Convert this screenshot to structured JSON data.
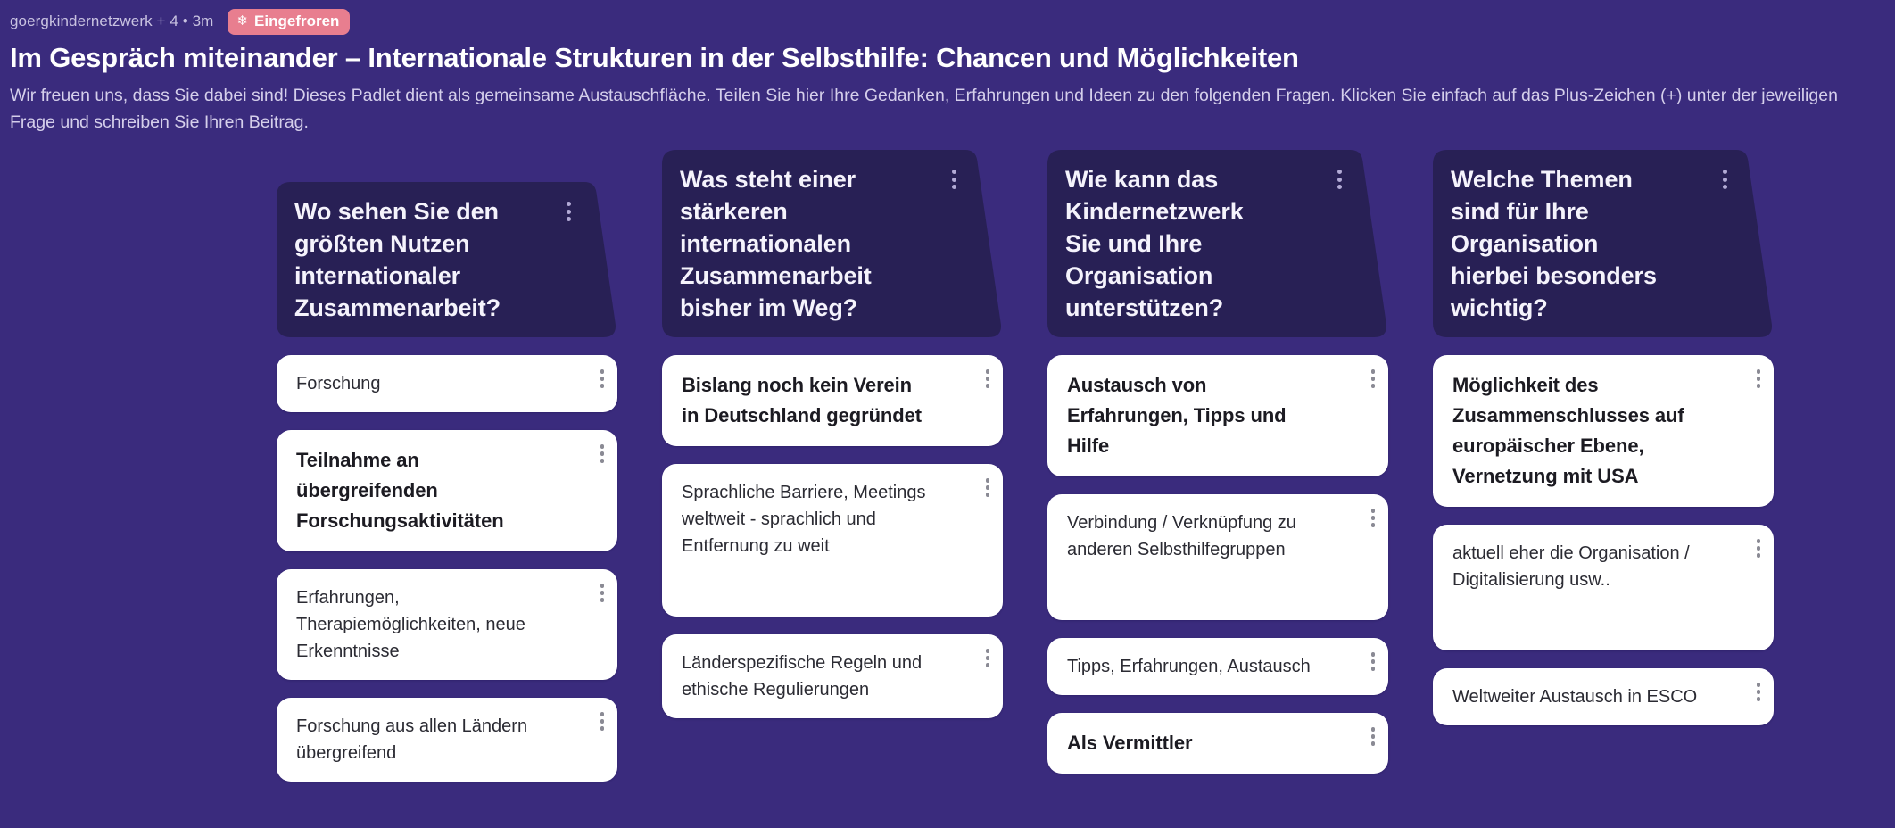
{
  "header": {
    "meta": "goergkindernetzwerk + 4 • 3m",
    "badge_icon": "❄",
    "badge_label": "Eingefroren",
    "badge_color": "#e87e8f",
    "title": "Im Gespräch miteinander – Internationale Strukturen in der Selbsthilfe: Chancen und Möglichkeiten",
    "description": "Wir freuen uns, dass Sie dabei sind! Dieses Padlet dient als gemeinsame Austauschfläche. Teilen Sie hier Ihre Gedanken, Erfahrungen und Ideen zu den folgenden Fragen. Klicken Sie einfach auf das Plus-Zeichen (+) unter der jeweiligen Frage und schreiben Sie Ihren Beitrag."
  },
  "colors": {
    "background": "#3a2b7d",
    "section_header": "#282055",
    "card": "#ffffff"
  },
  "icons": {
    "menu": "kebab-menu-icon",
    "badge": "snowflake-icon"
  },
  "columns": [
    {
      "question": "Wo sehen Sie den größten Nutzen internationaler Zusammenarbeit?",
      "posts": [
        {
          "text": "Forschung",
          "emphasis": false,
          "tall": false
        },
        {
          "text": "Teilnahme an übergreifenden Forschungsaktivitäten",
          "emphasis": true,
          "tall": false
        },
        {
          "text": "Erfahrungen, Therapiemöglichkeiten, neue Erkenntnisse",
          "emphasis": false,
          "tall": false
        },
        {
          "text": "Forschung aus allen Ländern übergreifend",
          "emphasis": false,
          "tall": false
        }
      ]
    },
    {
      "question": "Was steht einer stärkeren internationalen Zusammenarbeit bisher im Weg?",
      "posts": [
        {
          "text": "Bislang noch kein Verein in Deutschland gegründet",
          "emphasis": true,
          "tall": false
        },
        {
          "text": "Sprachliche Barriere, Meetings weltweit - sprachlich und Entfernung zu weit",
          "emphasis": false,
          "tall": true
        },
        {
          "text": "Länderspezifische Regeln und ethische Regulierungen",
          "emphasis": false,
          "tall": false
        }
      ]
    },
    {
      "question": "Wie kann das Kindernetzwerk Sie und Ihre Organisation unterstützen?",
      "posts": [
        {
          "text": "Austausch von Erfahrungen, Tipps und Hilfe",
          "emphasis": true,
          "tall": false
        },
        {
          "text": "Verbindung / Verknüpfung zu anderen Selbsthilfegruppen",
          "emphasis": false,
          "tall": true
        },
        {
          "text": "Tipps, Erfahrungen, Austausch",
          "emphasis": false,
          "tall": false
        },
        {
          "text": "Als Vermittler",
          "emphasis": true,
          "tall": false
        }
      ]
    },
    {
      "question": "Welche Themen sind für Ihre Organisation hierbei besonders wichtig?",
      "posts": [
        {
          "text": "Möglichkeit des Zusammenschlusses auf europäischer Ebene, Vernetzung mit USA",
          "emphasis": true,
          "tall": false
        },
        {
          "text": "aktuell eher die Organisation / Digitalisierung usw..",
          "emphasis": false,
          "tall": true
        },
        {
          "text": "Weltweiter Austausch in ESCO",
          "emphasis": false,
          "tall": false
        }
      ]
    }
  ]
}
